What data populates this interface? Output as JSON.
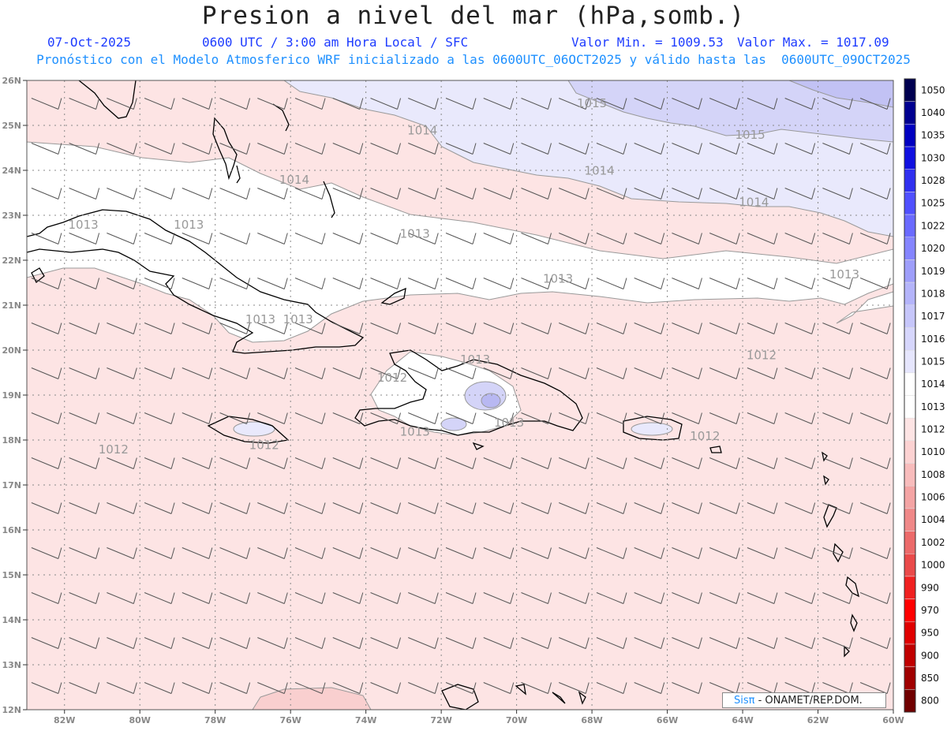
{
  "header": {
    "title": "Presion a nivel del mar (hPa,somb.)",
    "date": "07-Oct-2025",
    "time_info": "0600 UTC / 3:00 am Hora Local / SFC",
    "value_min": "Valor Min. = 1009.53",
    "value_max": "Valor Max. = 1017.09",
    "forecast_info": "Pronóstico con el Modelo Atmosferico WRF inicializado a las 0600UTC_06OCT2025 y válido hasta las  0600UTC_09OCT2025"
  },
  "map": {
    "lat_labels": [
      "26N",
      "25N",
      "24N",
      "23N",
      "22N",
      "21N",
      "20N",
      "19N",
      "18N",
      "17N",
      "16N",
      "15N",
      "14N",
      "13N",
      "12N"
    ],
    "lon_labels": [
      "82W",
      "80W",
      "78W",
      "76W",
      "74W",
      "72W",
      "70W",
      "68W",
      "66W",
      "64W",
      "62W",
      "60W"
    ],
    "isobar_labels": [
      {
        "text": "1014",
        "lon": -72.5,
        "lat": 24.8
      },
      {
        "text": "1015",
        "lon": -68.0,
        "lat": 25.4
      },
      {
        "text": "1015",
        "lon": -63.8,
        "lat": 24.7
      },
      {
        "text": "1014",
        "lon": -67.8,
        "lat": 23.9
      },
      {
        "text": "1014",
        "lon": -63.7,
        "lat": 23.2
      },
      {
        "text": "1014",
        "lon": -75.9,
        "lat": 23.7
      },
      {
        "text": "1013",
        "lon": -81.5,
        "lat": 22.7
      },
      {
        "text": "1013",
        "lon": -78.7,
        "lat": 22.7
      },
      {
        "text": "1013",
        "lon": -72.7,
        "lat": 22.5
      },
      {
        "text": "1013",
        "lon": -68.9,
        "lat": 21.5
      },
      {
        "text": "1013",
        "lon": -61.3,
        "lat": 21.6
      },
      {
        "text": "1013",
        "lon": -76.8,
        "lat": 20.6
      },
      {
        "text": "1013",
        "lon": -75.8,
        "lat": 20.6
      },
      {
        "text": "1012",
        "lon": -73.3,
        "lat": 19.3
      },
      {
        "text": "1013",
        "lon": -71.1,
        "lat": 19.7
      },
      {
        "text": "1012",
        "lon": -63.5,
        "lat": 19.8
      },
      {
        "text": "1013",
        "lon": -72.7,
        "lat": 18.1
      },
      {
        "text": "1013",
        "lon": -70.2,
        "lat": 18.3
      },
      {
        "text": "1012",
        "lon": -80.7,
        "lat": 17.7
      },
      {
        "text": "1012",
        "lon": -76.7,
        "lat": 17.8
      },
      {
        "text": "1012",
        "lon": -65.0,
        "lat": 18.0
      }
    ]
  },
  "colorbar": {
    "labels": [
      "1050",
      "1040",
      "1035",
      "1030",
      "1028",
      "1025",
      "1022",
      "1020",
      "1019",
      "1018",
      "1017",
      "1016",
      "1015",
      "1014",
      "1013",
      "1012",
      "1010",
      "1008",
      "1006",
      "1004",
      "1002",
      "1000",
      "990",
      "970",
      "950",
      "900",
      "850",
      "800"
    ],
    "colors": [
      "#000050",
      "#000090",
      "#0000c0",
      "#1010e0",
      "#3030f0",
      "#5050ff",
      "#6a6aff",
      "#8585ff",
      "#9e9efa",
      "#b4b4fa",
      "#c6c6fa",
      "#d6d6fc",
      "#e6e6fd",
      "#ffffff",
      "#ffffff",
      "#fde4e4",
      "#fcd2d2",
      "#f8bcbc",
      "#f4a4a4",
      "#f08888",
      "#ec6a6a",
      "#ea4a4a",
      "#f02020",
      "#ff0000",
      "#e00000",
      "#c00000",
      "#a00000",
      "#700000"
    ]
  },
  "colors": {
    "base_pink": "#fde4e4",
    "light_blue": "#e9e9fc",
    "mid_blue": "#d4d4f8",
    "deep_blue": "#c2c2f4",
    "grid": "#888888",
    "coast": "#000000",
    "title": "#222222",
    "date_line": "#1e3cff",
    "forecast_line": "#1e90ff"
  },
  "credit": {
    "brand": "Sisπ",
    "text": " - ONAMET/REP.DOM."
  }
}
